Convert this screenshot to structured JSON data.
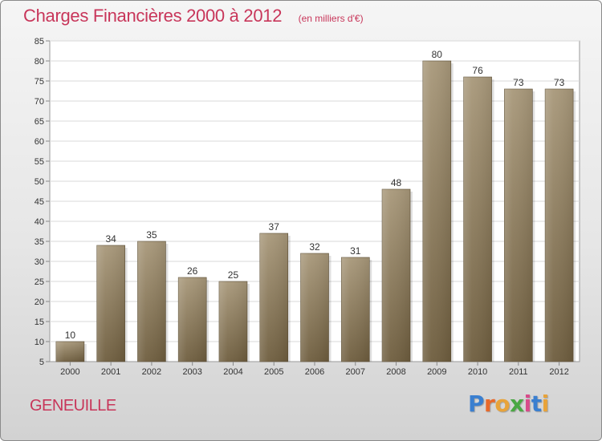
{
  "header": {
    "title": "Charges Financières 2000 à 2012",
    "subtitle": "(en milliers d'€)"
  },
  "commune": "GENEUILLE",
  "logo": {
    "text": "Proxiti",
    "letters": [
      {
        "char": "P",
        "color": "#3a7fd0"
      },
      {
        "char": "r",
        "color": "#e8692a"
      },
      {
        "char": "o",
        "color": "#e8a33a"
      },
      {
        "char": "x",
        "color": "#4aa843"
      },
      {
        "char": "i",
        "color": "#d84a8a"
      },
      {
        "char": "t",
        "color": "#3a7fd0"
      },
      {
        "char": "i",
        "color": "#e8a33a"
      }
    ]
  },
  "colors": {
    "accent": "#c8365a",
    "bar_top": "#a8987a",
    "bar_bottom": "#6e5d3e"
  },
  "chart_data": {
    "type": "bar",
    "title": "Charges Financières 2000 à 2012",
    "subtitle": "(en milliers d'€)",
    "categories": [
      "2000",
      "2001",
      "2002",
      "2003",
      "2004",
      "2005",
      "2006",
      "2007",
      "2008",
      "2009",
      "2010",
      "2011",
      "2012"
    ],
    "values": [
      10,
      34,
      35,
      26,
      25,
      37,
      32,
      31,
      48,
      80,
      76,
      73,
      73
    ],
    "ylim": [
      5,
      85
    ],
    "yticks": [
      5,
      10,
      15,
      20,
      25,
      30,
      35,
      40,
      45,
      50,
      55,
      60,
      65,
      70,
      75,
      80,
      85
    ],
    "grid": true,
    "legend": "none",
    "xlabel": "",
    "ylabel": ""
  }
}
